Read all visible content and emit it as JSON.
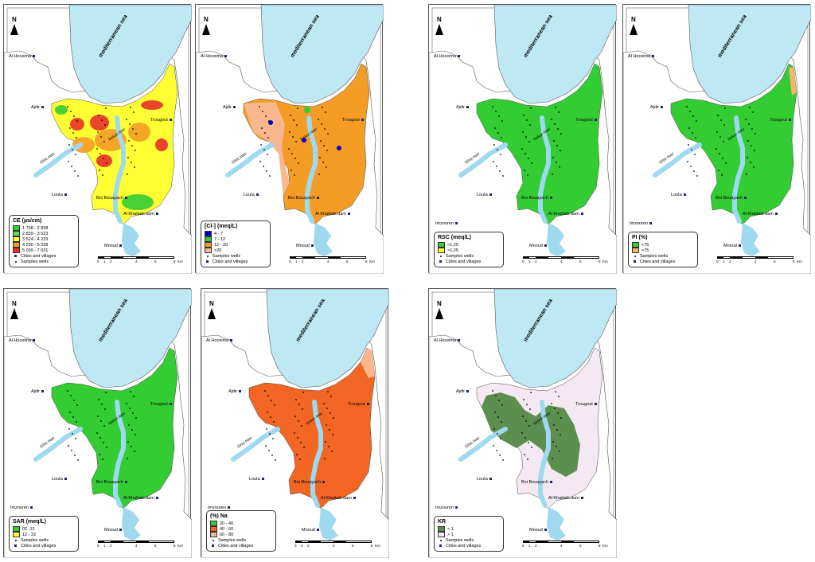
{
  "colors": {
    "sea": "#bfe8f5",
    "river": "#9fd9ef",
    "land": "#ffffff",
    "green": "#33cc33",
    "yellow": "#ffff33",
    "orange": "#f59c25",
    "red": "#e8302a",
    "peach": "#f9b78e",
    "darkorange": "#f26522",
    "darkgreen": "#5c8f4e",
    "pink": "#f4e9f2",
    "blue": "#0000cc",
    "lightgreen": "#66dd44",
    "lightorange": "#f6b36a"
  },
  "common": {
    "sea_label": "mediterranean sea",
    "river1": "Ghis river",
    "river2": "Nekor river",
    "cities": [
      "Al Hoceima",
      "Ajdir",
      "Trougout",
      "Louta",
      "Bni Bouayach",
      "Al Khattabi dam",
      "Mnoud",
      "Imzouren"
    ],
    "samples_label": "Samples wells",
    "cities_label": "Cities and villages",
    "scale_ticks": [
      "0",
      "1",
      "2",
      "4",
      "6",
      "8"
    ],
    "scale_unit": "Km",
    "north": "N"
  },
  "panels": [
    {
      "id": "ce",
      "legend_title": "CE (µs/cm)",
      "classes": [
        {
          "label": "1 738 - 2 838",
          "color": "#33cc33"
        },
        {
          "label": "2 839 - 3 523",
          "color": "#66dd44"
        },
        {
          "label": "3 524 - 4 229",
          "color": "#ffff33"
        },
        {
          "label": "4 230 - 5 038",
          "color": "#f59c25"
        },
        {
          "label": "5 039 - 7 031",
          "color": "#e8302a"
        }
      ],
      "extra1": "Cities and villages",
      "extra2": "Samples wells"
    },
    {
      "id": "cl",
      "legend_title": "[Cl-]  (meq/L)",
      "classes": [
        {
          "label": "4 - 7",
          "color": "#0000cc"
        },
        {
          "label": "7 - 12",
          "color": "#33cc33"
        },
        {
          "label": "12 - 20",
          "color": "#f59c25"
        },
        {
          "label": ">20",
          "color": "#f9b78e"
        }
      ],
      "extra1": "Samples wells",
      "extra2": "Cities and villages"
    },
    {
      "id": "rsc",
      "legend_title": "RSC (meq/L)",
      "classes": [
        {
          "label": "<1,25",
          "color": "#33cc33"
        },
        {
          "label": ">1,25",
          "color": "#ffff33"
        }
      ],
      "extra1": "Samples wells",
      "extra2": "Cities and villages"
    },
    {
      "id": "pi",
      "legend_title": "PI (%)",
      "classes": [
        {
          "label": "<75",
          "color": "#33cc33"
        },
        {
          "label": ">75",
          "color": "#f6b36a"
        }
      ],
      "extra1": "Samples wells",
      "extra2": "Cities and villages"
    },
    {
      "id": "sar",
      "legend_title": "SAR (meq/L)",
      "classes": [
        {
          "label": "02 -12",
          "color": "#33cc33"
        },
        {
          "label": "12 - 22",
          "color": "#ffff33"
        }
      ],
      "extra1": "Samples wells",
      "extra2": "Cities and villages"
    },
    {
      "id": "na",
      "legend_title": "(%) Na",
      "classes": [
        {
          "label": "20 - 40",
          "color": "#33cc33"
        },
        {
          "label": "40 - 60",
          "color": "#f26522"
        },
        {
          "label": "60 - 80",
          "color": "#f9b78e"
        }
      ],
      "extra1": "Samples wells",
      "extra2": "Cities and villages"
    },
    {
      "id": "kr",
      "legend_title": "KR",
      "classes": [
        {
          "label": "< 1",
          "color": "#5c8f4e"
        },
        {
          "label": "> 1",
          "color": "#f4e9f2"
        }
      ],
      "extra1": "Samples wells",
      "extra2": "Cities and villages"
    }
  ]
}
